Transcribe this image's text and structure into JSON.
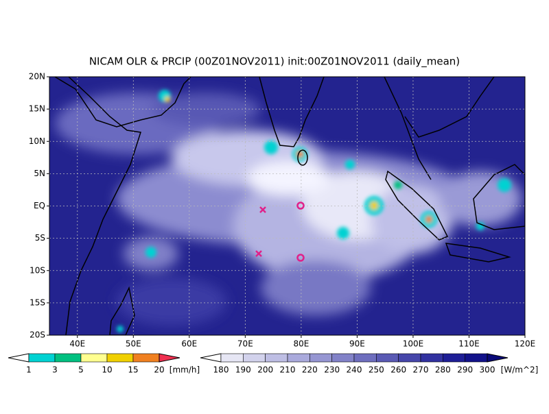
{
  "title": "NICAM OLR & PRCIP (00Z01NOV2011) init:00Z01NOV2011 (daily_mean)",
  "lat_labels": [
    "20N",
    "15N",
    "10N",
    "5N",
    "EQ",
    "5S",
    "10S",
    "15S",
    "20S"
  ],
  "lon_labels": [
    "40E",
    "50E",
    "60E",
    "70E",
    "80E",
    "90E",
    "100E",
    "110E",
    "120E"
  ],
  "precip_colorbar": {
    "labels": [
      1,
      3,
      5,
      10,
      15,
      20
    ],
    "unit": "[mm/h]",
    "under_color": "#ffffff",
    "colors": [
      "#00d2d2",
      "#00c080",
      "#ffff90",
      "#f0d000",
      "#f08020",
      "#f03050"
    ]
  },
  "olr_colorbar": {
    "labels": [
      180,
      190,
      200,
      210,
      220,
      230,
      240,
      250,
      260,
      270,
      280,
      290,
      300
    ],
    "unit": "[W/m^2]",
    "under_color": "#ffffff",
    "colors": [
      "#e6e6f4",
      "#d2d2ec",
      "#bebee4",
      "#aaaadc",
      "#9696d2",
      "#8282c8",
      "#6e6ebe",
      "#5a5ab4",
      "#4646aa",
      "#3232a0",
      "#1e1e96",
      "#12128a",
      "#0a0a78"
    ]
  }
}
